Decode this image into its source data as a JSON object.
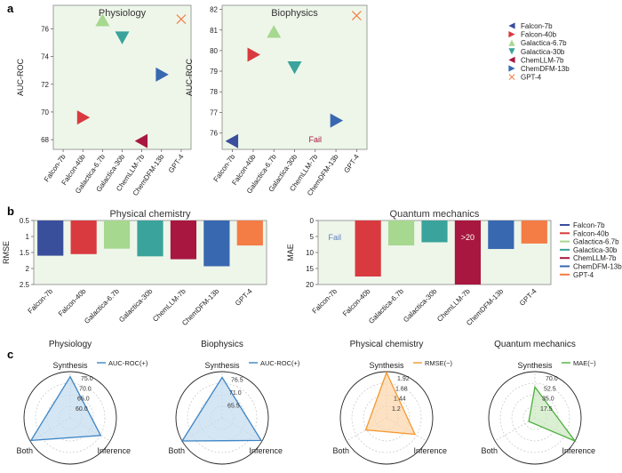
{
  "model_colors": {
    "Falcon-7b": "#3a4f9c",
    "Falcon-40b": "#d93a3f",
    "Galactica-6.7b": "#a6d88f",
    "Galactica-30b": "#3aa39b",
    "ChemLLM-7b": "#a8173f",
    "ChemDFM-13b": "#3868b0",
    "GPT-4": "#f47c45"
  },
  "models": [
    "Falcon-7b",
    "Falcon-40b",
    "Galactica-6.7b",
    "Galactica-30b",
    "ChemLLM-7b",
    "ChemDFM-13b",
    "GPT-4"
  ],
  "panel_labels": {
    "a": "a",
    "b": "b",
    "c": "c"
  },
  "chart_data": [
    {
      "id": "a-physiology",
      "type": "scatter",
      "title": "Physiology",
      "ylabel": "AUC-ROC",
      "ylim": [
        67.3,
        77.7
      ],
      "yticks": [
        68,
        70,
        72,
        74,
        76
      ],
      "categories": [
        "Falcon-7b",
        "Falcon-40b",
        "Galactica-6.7b",
        "Galactica-30b",
        "ChemLLM-7b",
        "ChemDFM-13b",
        "GPT-4"
      ],
      "markers": [
        "tri-left",
        "tri-right",
        "tri-up",
        "tri-down",
        "tri-left",
        "tri-right",
        "x"
      ],
      "values": [
        null,
        69.6,
        76.6,
        75.4,
        67.9,
        72.7,
        76.7
      ],
      "annotations": []
    },
    {
      "id": "a-biophysics",
      "type": "scatter",
      "title": "Biophysics",
      "ylabel": "AUC-ROC",
      "ylim": [
        75.2,
        82.2
      ],
      "yticks": [
        76,
        77,
        78,
        79,
        80,
        81,
        82
      ],
      "categories": [
        "Falcon-7b",
        "Falcon-40b",
        "Galactica-6.7b",
        "Galactica-30b",
        "ChemLLM-7b",
        "ChemDFM-13b",
        "GPT-4"
      ],
      "markers": [
        "tri-left",
        "tri-right",
        "tri-up",
        "tri-down",
        "tri-left",
        "tri-right",
        "x"
      ],
      "values": [
        75.6,
        79.8,
        80.9,
        79.2,
        null,
        76.6,
        81.7
      ],
      "annotations": [
        {
          "category": "ChemLLM-7b",
          "text": "Fail",
          "color": "#a8173f"
        }
      ]
    },
    {
      "id": "b-physical-chemistry",
      "type": "bar",
      "title": "Physical chemistry",
      "ylabel": "RMSE",
      "ylim": [
        0.5,
        2.5
      ],
      "yticks": [
        0.5,
        1.0,
        1.5,
        2.0,
        2.5
      ],
      "inverted": true,
      "categories": [
        "Falcon-7b",
        "Falcon-40b",
        "Galactica-6.7b",
        "Galactica-30b",
        "ChemLLM-7b",
        "ChemDFM-13b",
        "GPT-4"
      ],
      "values": [
        1.6,
        1.55,
        1.38,
        1.62,
        1.71,
        1.93,
        1.28
      ],
      "annotations": []
    },
    {
      "id": "b-quantum-mechanics",
      "type": "bar",
      "title": "Quantum mechanics",
      "ylabel": "MAE",
      "ylim": [
        0,
        20
      ],
      "yticks": [
        0,
        5,
        10,
        15,
        20
      ],
      "inverted": true,
      "categories": [
        "Falcon-7b",
        "Falcon-40b",
        "Galactica-6.7b",
        "Galactica-30b",
        "ChemLLM-7b",
        "ChemDFM-13b",
        "GPT-4"
      ],
      "values": [
        null,
        17.5,
        7.8,
        6.8,
        20,
        8.9,
        7.2
      ],
      "annotations": [
        {
          "category": "Falcon-7b",
          "text": "Fail",
          "color": "#5b7fc4"
        },
        {
          "category": "ChemLLM-7b",
          "text": ">20",
          "color": "#ffffff"
        }
      ]
    }
  ],
  "legend_entries": [
    "Falcon-7b",
    "Falcon-40b",
    "Galactica-6.7b",
    "Galactica-30b",
    "ChemLLM-7b",
    "ChemDFM-13b",
    "GPT-4"
  ],
  "radar_data": [
    {
      "title": "Physiology",
      "legend": "AUC-ROC(+)",
      "color": "#3d85c6",
      "fill": "#c5dcef",
      "axes": [
        "Synthesis",
        "Inference",
        "Both"
      ],
      "ticks": [
        "60.0",
        "65.0",
        "70.0",
        "75.0"
      ],
      "range": [
        55,
        78
      ],
      "values": [
        75.5,
        72.5,
        77.5
      ]
    },
    {
      "title": "Biophysics",
      "legend": "AUC-ROC(+)",
      "color": "#3d85c6",
      "fill": "#c5dcef",
      "axes": [
        "Synthesis",
        "Inference",
        "Both"
      ],
      "ticks": [
        "65.5",
        "71.0",
        "76.5"
      ],
      "range": [
        60,
        80
      ],
      "values": [
        77.5,
        79.5,
        80
      ]
    },
    {
      "title": "Physical chemistry",
      "legend": "RMSE(−)",
      "color": "#f5982f",
      "fill": "#fbd7ae",
      "axes": [
        "Synthesis",
        "Inference",
        "Both"
      ],
      "ticks": [
        "1.2",
        "1.44",
        "1.68",
        "1.92"
      ],
      "range": [
        0.96,
        2.0
      ],
      "values": [
        1.98,
        1.7,
        1.5
      ]
    },
    {
      "title": "Quantum mechanics",
      "legend": "MAE(−)",
      "color": "#4caf3c",
      "fill": "#cfeac4",
      "axes": [
        "Synthesis",
        "Inference",
        "Both"
      ],
      "ticks": [
        "17.5",
        "35.0",
        "52.5",
        "70.0"
      ],
      "range": [
        0,
        78
      ],
      "values": [
        52,
        78,
        12
      ]
    }
  ]
}
